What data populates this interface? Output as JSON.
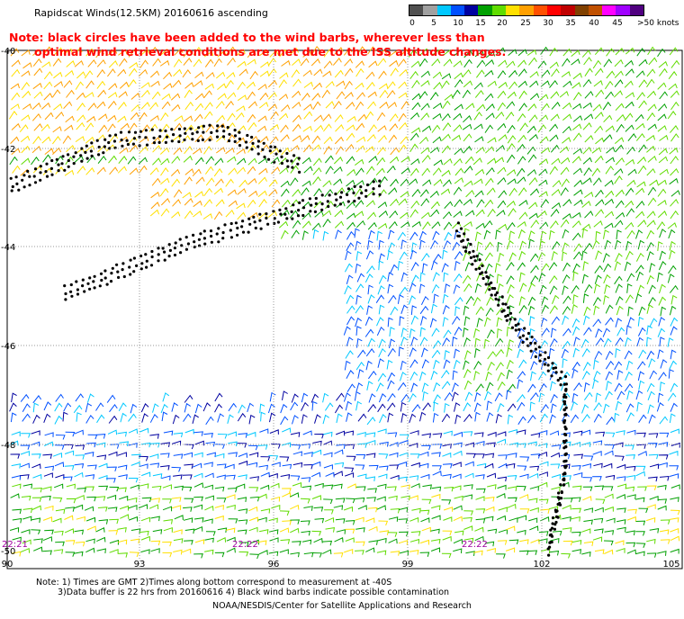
{
  "title": "Rapidscat Winds(12.5KM) 20160616 ascending",
  "note_line1": "Note: black circles have been added to the wind barbs, wherever less than",
  "note_line2": "optimal wind retrieval conditions are met due to the ISS altitude changes.",
  "legend": {
    "labels": [
      "0",
      "5",
      "10",
      "15",
      "20",
      "25",
      "30",
      "35",
      "40",
      "45",
      ">50 knots"
    ],
    "colors": [
      "#505050",
      "#a0a0a0",
      "#00c8ff",
      "#0050ff",
      "#0000a0",
      "#00a000",
      "#60dc00",
      "#ffe000",
      "#ffa000",
      "#ff5000",
      "#ff0000",
      "#c00000",
      "#804000",
      "#c05000",
      "#ff00ff",
      "#a000ff",
      "#500080"
    ]
  },
  "lat_labels": [
    "-40",
    "-42",
    "-44",
    "-46",
    "-48",
    "-50"
  ],
  "lon_labels": [
    "90",
    "93",
    "96",
    "99",
    "102",
    "105"
  ],
  "time_labels": [
    "22:21",
    "22:22",
    "22:22"
  ],
  "footnote_line1": "Note: 1) Times are GMT 2)Times along bottom correspond to measurement at -40S",
  "footnote_line2": "3)Data buffer is 22 hrs from 20160616 4) Black wind barbs indicate possible contamination",
  "credit": "NOAA/NESDIS/Center for Satellite Applications and Research"
}
